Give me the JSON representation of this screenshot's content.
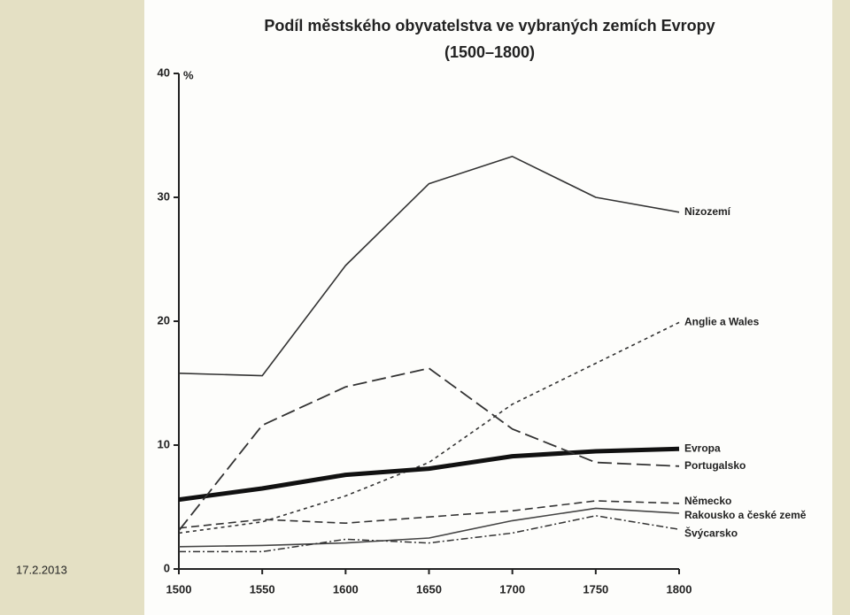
{
  "date": "17.2.2013",
  "chart_data": {
    "type": "line",
    "title": "Podíl městského obyvatelstva ve vybraných zemích Evropy",
    "subtitle": "(1500–1800)",
    "y_label": "%",
    "x": [
      1500,
      1550,
      1600,
      1650,
      1700,
      1750,
      1800
    ],
    "xlim": [
      1500,
      1800
    ],
    "xticks": [
      1500,
      1550,
      1600,
      1650,
      1700,
      1750,
      1800
    ],
    "ylim": [
      0,
      40
    ],
    "yticks": [
      0,
      10,
      20,
      30,
      40
    ],
    "series": [
      {
        "name": "Nizozemí",
        "color": "#333333",
        "style": "solid",
        "values": [
          15.8,
          15.6,
          24.5,
          31.1,
          33.3,
          30,
          28.8
        ]
      },
      {
        "name": "Anglie a Wales",
        "color": "#333333",
        "style": "dotted",
        "values": [
          2.9,
          3.8,
          5.9,
          8.6,
          13.3,
          16.6,
          19.9
        ]
      },
      {
        "name": "Evropa",
        "color": "#111111",
        "style": "thick",
        "values": [
          5.6,
          6.5,
          7.6,
          8.1,
          9.1,
          9.5,
          9.7
        ]
      },
      {
        "name": "Portugalsko",
        "color": "#333333",
        "style": "long-dash",
        "values": [
          3.1,
          11.6,
          14.7,
          16.2,
          11.3,
          8.6,
          8.3
        ]
      },
      {
        "name": "Německo",
        "color": "#333333",
        "style": "dashed",
        "values": [
          3.3,
          4,
          3.7,
          4.2,
          4.7,
          5.5,
          5.3
        ]
      },
      {
        "name": "Rakousko a české země",
        "color": "#444444",
        "style": "solid",
        "values": [
          1.8,
          1.9,
          2.1,
          2.5,
          3.9,
          4.9,
          4.5
        ]
      },
      {
        "name": "Švýcarsko",
        "color": "#333333",
        "style": "dash-dot",
        "values": [
          1.4,
          1.4,
          2.4,
          2.1,
          2.9,
          4.3,
          3.2
        ]
      }
    ]
  }
}
